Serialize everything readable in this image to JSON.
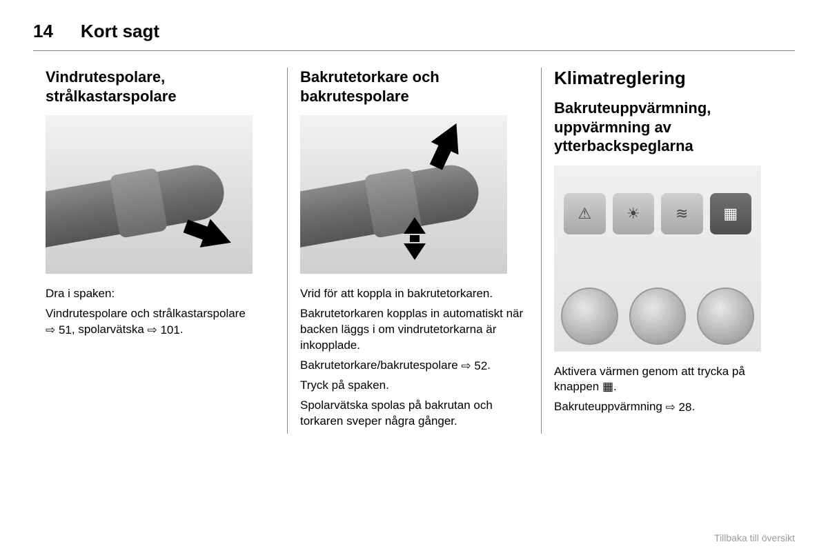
{
  "header": {
    "pageNumber": "14",
    "title": "Kort sagt"
  },
  "columns": {
    "left": {
      "heading": "Vindrutespolare,\nstrålkastarspolare",
      "figure": {
        "type": "stalk-pull",
        "arrow": "right-down"
      },
      "p1": "Dra i spaken:",
      "p2_a": "Vindrutespolare och strålkastarspolare ",
      "p2_xref1": "⇨ 51",
      "p2_b": ", spolarvätska ",
      "p2_xref2": "⇨ 101",
      "p2_c": "."
    },
    "middle": {
      "heading": "Bakrutetorkare och\nbakrutespolare",
      "figure": {
        "type": "stalk-rotate-push",
        "arrows": [
          "up-right",
          "vertical"
        ]
      },
      "p1": "Vrid för att koppla in bakrutetorkaren.",
      "p2": "Bakrutetorkaren kopplas in automatiskt när backen läggs i om vindrutetorkarna är inkopplade.",
      "p3_a": "Bakrutetorkare/bakrutespolare ",
      "p3_xref": "⇨ 52",
      "p3_b": ".",
      "p4": "Tryck på spaken.",
      "p5": "Spolarvätska spolas på bakrutan och torkaren sveper några gånger."
    },
    "right": {
      "sectionTitle": "Klimatreglering",
      "heading": "Bakruteuppvärmning,\nuppvärmning av\nytterbackspeglarna",
      "figure": {
        "type": "dashboard-buttons",
        "buttons": [
          {
            "icon": "⚠",
            "active": false,
            "name": "hazard"
          },
          {
            "icon": "☀",
            "active": false,
            "name": "fog-rear"
          },
          {
            "icon": "≋",
            "active": false,
            "name": "fog-front"
          },
          {
            "icon": "▦",
            "active": true,
            "name": "rear-defrost"
          }
        ]
      },
      "p1_a": "Aktivera värmen genom att trycka på knappen ",
      "p1_icon": "▦",
      "p1_b": ".",
      "p2_a": "Bakruteuppvärmning ",
      "p2_xref": "⇨ 28",
      "p2_b": "."
    }
  },
  "footer": {
    "link": "Tillbaka till översikt"
  }
}
